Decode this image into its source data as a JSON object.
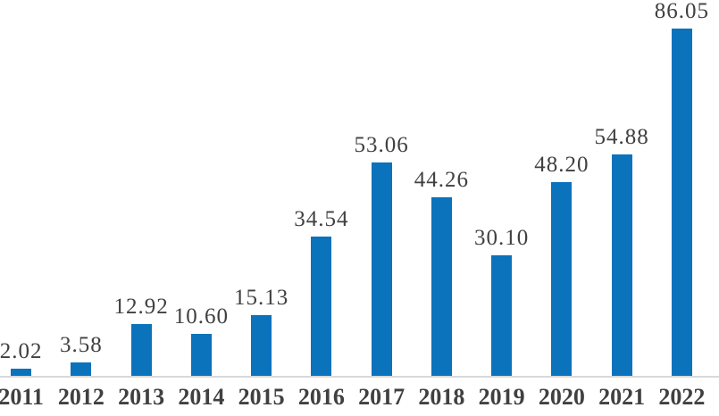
{
  "chart_data": {
    "type": "bar",
    "title": "",
    "xlabel": "",
    "ylabel": "",
    "categories": [
      "2011",
      "2012",
      "2013",
      "2014",
      "2015",
      "2016",
      "2017",
      "2018",
      "2019",
      "2020",
      "2021",
      "2022"
    ],
    "values": [
      2.02,
      3.58,
      12.92,
      10.6,
      15.13,
      34.54,
      53.06,
      44.26,
      30.1,
      48.2,
      54.88,
      86.05
    ],
    "value_labels": [
      "2.02",
      "3.58",
      "12.92",
      "10.60",
      "15.13",
      "34.54",
      "53.06",
      "44.26",
      "30.10",
      "48.20",
      "54.88",
      "86.05"
    ],
    "ylim": [
      0,
      90
    ],
    "grid": false,
    "legend": false,
    "data_labels": true,
    "bar_color": "#0b72bc",
    "label_color": "#404040",
    "axis_line_color": "#d9d9d9"
  }
}
